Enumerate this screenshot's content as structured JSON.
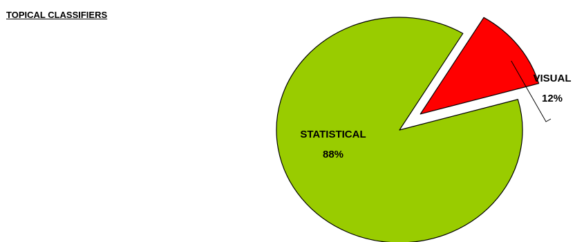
{
  "chart_data": {
    "type": "pie",
    "title": "TOPICAL CLASSIFIERS",
    "slices": [
      {
        "label": "STATISTICAL",
        "value": 88,
        "value_label": "88%",
        "color": "#99cc00",
        "exploded": false
      },
      {
        "label": "VISUAL",
        "value": 12,
        "value_label": "12%",
        "color": "#ff0000",
        "exploded": true
      }
    ],
    "legend": "none",
    "labels": "category-and-percent",
    "leader_lines": true
  }
}
